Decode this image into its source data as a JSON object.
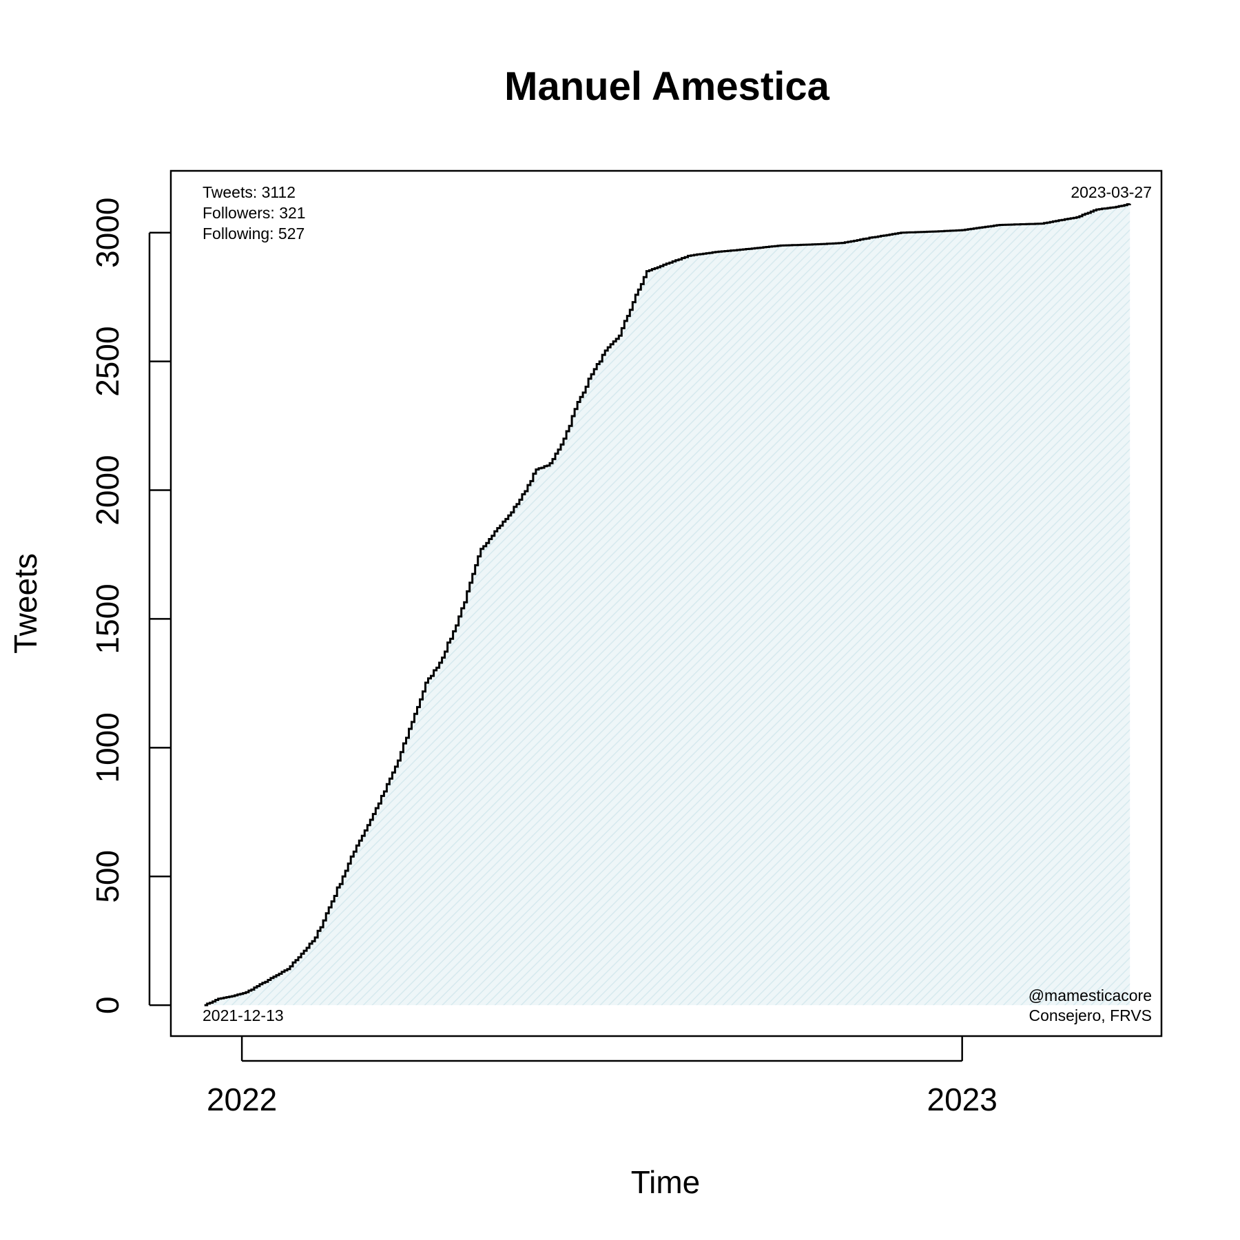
{
  "chart_data": {
    "type": "area",
    "title": "Manuel Amestica",
    "xlabel": "Time",
    "ylabel": "Tweets",
    "x_tick_labels": [
      "2022",
      "2023"
    ],
    "y_tick_labels": [
      "0",
      "500",
      "1000",
      "1500",
      "2000",
      "2500",
      "3000"
    ],
    "y_ticks": [
      0,
      500,
      1000,
      1500,
      2000,
      2500,
      3000
    ],
    "xlim": [
      "2021-11-26",
      "2023-04-12"
    ],
    "ylim": [
      -120,
      3240
    ],
    "grid": false,
    "legend": "none",
    "line_color": "#000000",
    "fill_color": "#e6f2f4",
    "annotations": {
      "tweets": "Tweets: 3112",
      "followers": "Followers: 321",
      "following": "Following: 527",
      "start_date": "2021-12-13",
      "end_date": "2023-03-27",
      "handle": "@mamesticacore",
      "role": "Consejero, FRVS"
    },
    "series": [
      {
        "x": [
          "2021-12-13",
          "2021-12-20",
          "2021-12-27",
          "2022-01-03",
          "2022-01-10",
          "2022-01-17",
          "2022-01-24",
          "2022-01-31",
          "2022-02-07",
          "2022-02-14",
          "2022-02-21",
          "2022-02-28",
          "2022-03-07",
          "2022-03-14",
          "2022-03-21",
          "2022-03-28",
          "2022-04-04",
          "2022-04-11",
          "2022-04-18",
          "2022-04-25",
          "2022-05-02",
          "2022-05-09",
          "2022-05-16",
          "2022-05-23",
          "2022-05-30",
          "2022-06-06",
          "2022-06-13",
          "2022-06-20",
          "2022-06-27",
          "2022-07-04",
          "2022-07-11",
          "2022-07-18",
          "2022-07-25",
          "2022-08-01",
          "2022-08-15",
          "2022-08-29",
          "2022-09-12",
          "2022-10-01",
          "2022-10-20",
          "2022-11-01",
          "2022-11-15",
          "2022-12-01",
          "2022-12-20",
          "2023-01-01",
          "2023-01-20",
          "2023-02-10",
          "2023-02-28",
          "2023-03-10",
          "2023-03-20",
          "2023-03-27"
        ],
        "y": [
          0,
          25,
          35,
          50,
          80,
          110,
          140,
          200,
          260,
          380,
          500,
          620,
          720,
          830,
          950,
          1100,
          1250,
          1330,
          1450,
          1600,
          1770,
          1840,
          1900,
          1980,
          2080,
          2100,
          2200,
          2340,
          2450,
          2540,
          2600,
          2730,
          2850,
          2870,
          2910,
          2925,
          2935,
          2950,
          2955,
          2960,
          2980,
          3000,
          3005,
          3010,
          3030,
          3035,
          3060,
          3090,
          3100,
          3112
        ]
      }
    ]
  }
}
